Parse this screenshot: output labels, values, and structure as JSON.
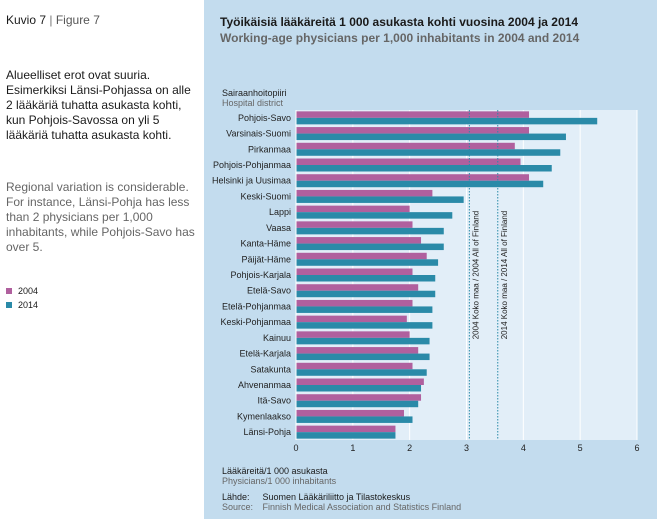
{
  "figure": {
    "label_fi": "Kuvio 7",
    "separator": "|",
    "label_en": "Figure 7"
  },
  "description": {
    "fi": "Alueelliset erot ovat suuria. Esimerkiksi Länsi-Pohjassa on alle 2 lääkäriä tuhatta asukasta kohti, kun Pohjois-Savossa on yli 5 lääkäriä tuhatta asukasta kohti.",
    "en": "Regional variation is considerable. For instance, Länsi-Pohja has less than 2 physicians per 1,000 inhabitants, while Pohjois-Savo has over 5."
  },
  "legend": [
    {
      "label": "2004",
      "color": "#b0609e"
    },
    {
      "label": "2014",
      "color": "#2a8aa8"
    }
  ],
  "colors": {
    "panel_bg": "#c3dcee",
    "plot_bg": "#e2eef8",
    "series_2004": "#b0609e",
    "series_2014": "#2a8aa8",
    "ref_line": "#2a8aa8"
  },
  "footer": {
    "axis_label_fi": "Lääkäreitä/1 000 asukasta",
    "axis_label_en": "Physicians/1 000 inhabitants",
    "source_label_fi": "Lähde:",
    "source_fi": "Suomen Lääkäriliitto ja Tilastokeskus",
    "source_label_en": "Source:",
    "source_en": "Finnish Medical Association and Statistics Finland"
  },
  "chart_data": {
    "type": "bar",
    "orientation": "horizontal",
    "title": "Työikäisiä lääkäreitä 1 000 asukasta kohti vuosina 2004 ja 2014",
    "subtitle": "Working-age physicians per 1,000 inhabitants in 2004 and 2014",
    "category_header_fi": "Sairaanhoitopiiri",
    "category_header_en": "Hospital district",
    "categories": [
      "Pohjois-Savo",
      "Varsinais-Suomi",
      "Pirkanmaa",
      "Pohjois-Pohjanmaa",
      "Helsinki ja Uusimaa",
      "Keski-Suomi",
      "Lappi",
      "Vaasa",
      "Kanta-Häme",
      "Päijät-Häme",
      "Pohjois-Karjala",
      "Etelä-Savo",
      "Etelä-Pohjanmaa",
      "Keski-Pohjanmaa",
      "Kainuu",
      "Etelä-Karjala",
      "Satakunta",
      "Ahvenanmaa",
      "Itä-Savo",
      "Kymenlaakso",
      "Länsi-Pohja"
    ],
    "series": [
      {
        "name": "2004",
        "values": [
          4.1,
          4.1,
          3.85,
          3.95,
          4.1,
          2.4,
          2.0,
          2.05,
          2.2,
          2.3,
          2.05,
          2.15,
          2.05,
          1.95,
          2.0,
          2.15,
          2.05,
          2.25,
          2.2,
          1.9,
          1.75
        ]
      },
      {
        "name": "2014",
        "values": [
          5.3,
          4.75,
          4.65,
          4.5,
          4.35,
          2.95,
          2.75,
          2.6,
          2.6,
          2.5,
          2.45,
          2.45,
          2.4,
          2.4,
          2.35,
          2.35,
          2.3,
          2.2,
          2.15,
          2.05,
          1.75
        ]
      }
    ],
    "x_ticks": [
      "0",
      "1",
      "2",
      "3",
      "4",
      "5",
      "6"
    ],
    "xlim": [
      0,
      6
    ],
    "reference_lines": [
      {
        "value": 3.05,
        "label": "2004 Koko maa / 2004 All of Finland"
      },
      {
        "value": 3.55,
        "label": "2014 Koko maa / 2014 All of Finland"
      }
    ],
    "grid": true
  }
}
